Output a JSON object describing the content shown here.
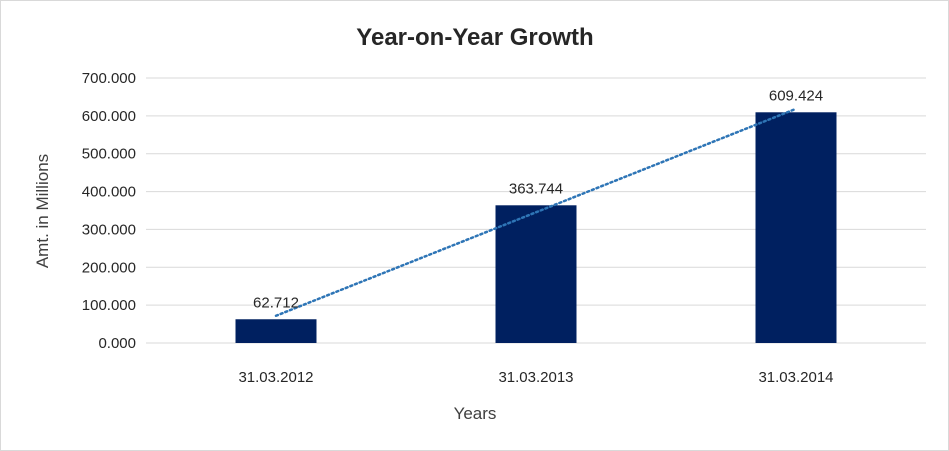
{
  "chart_data": {
    "type": "bar",
    "title": "Year-on-Year Growth",
    "xlabel": "Years",
    "ylabel": "Amt. in Millions",
    "categories": [
      "31.03.2012",
      "31.03.2013",
      "31.03.2014"
    ],
    "values": [
      62.712,
      363.744,
      609.424
    ],
    "value_labels": [
      "62.712",
      "363.744",
      "609.424"
    ],
    "ylim": [
      0,
      700
    ],
    "y_ticks": [
      0,
      100,
      200,
      300,
      400,
      500,
      600,
      700
    ],
    "y_tick_labels": [
      "0.000",
      "100.000",
      "200.000",
      "300.000",
      "400.000",
      "500.000",
      "600.000",
      "700.000"
    ],
    "grid": true,
    "legend": "none",
    "trendline": {
      "type": "linear",
      "style": "dotted"
    },
    "colors": {
      "bar": "#002060",
      "trendline": "#2e75b6",
      "grid": "#d9d9d9"
    }
  }
}
